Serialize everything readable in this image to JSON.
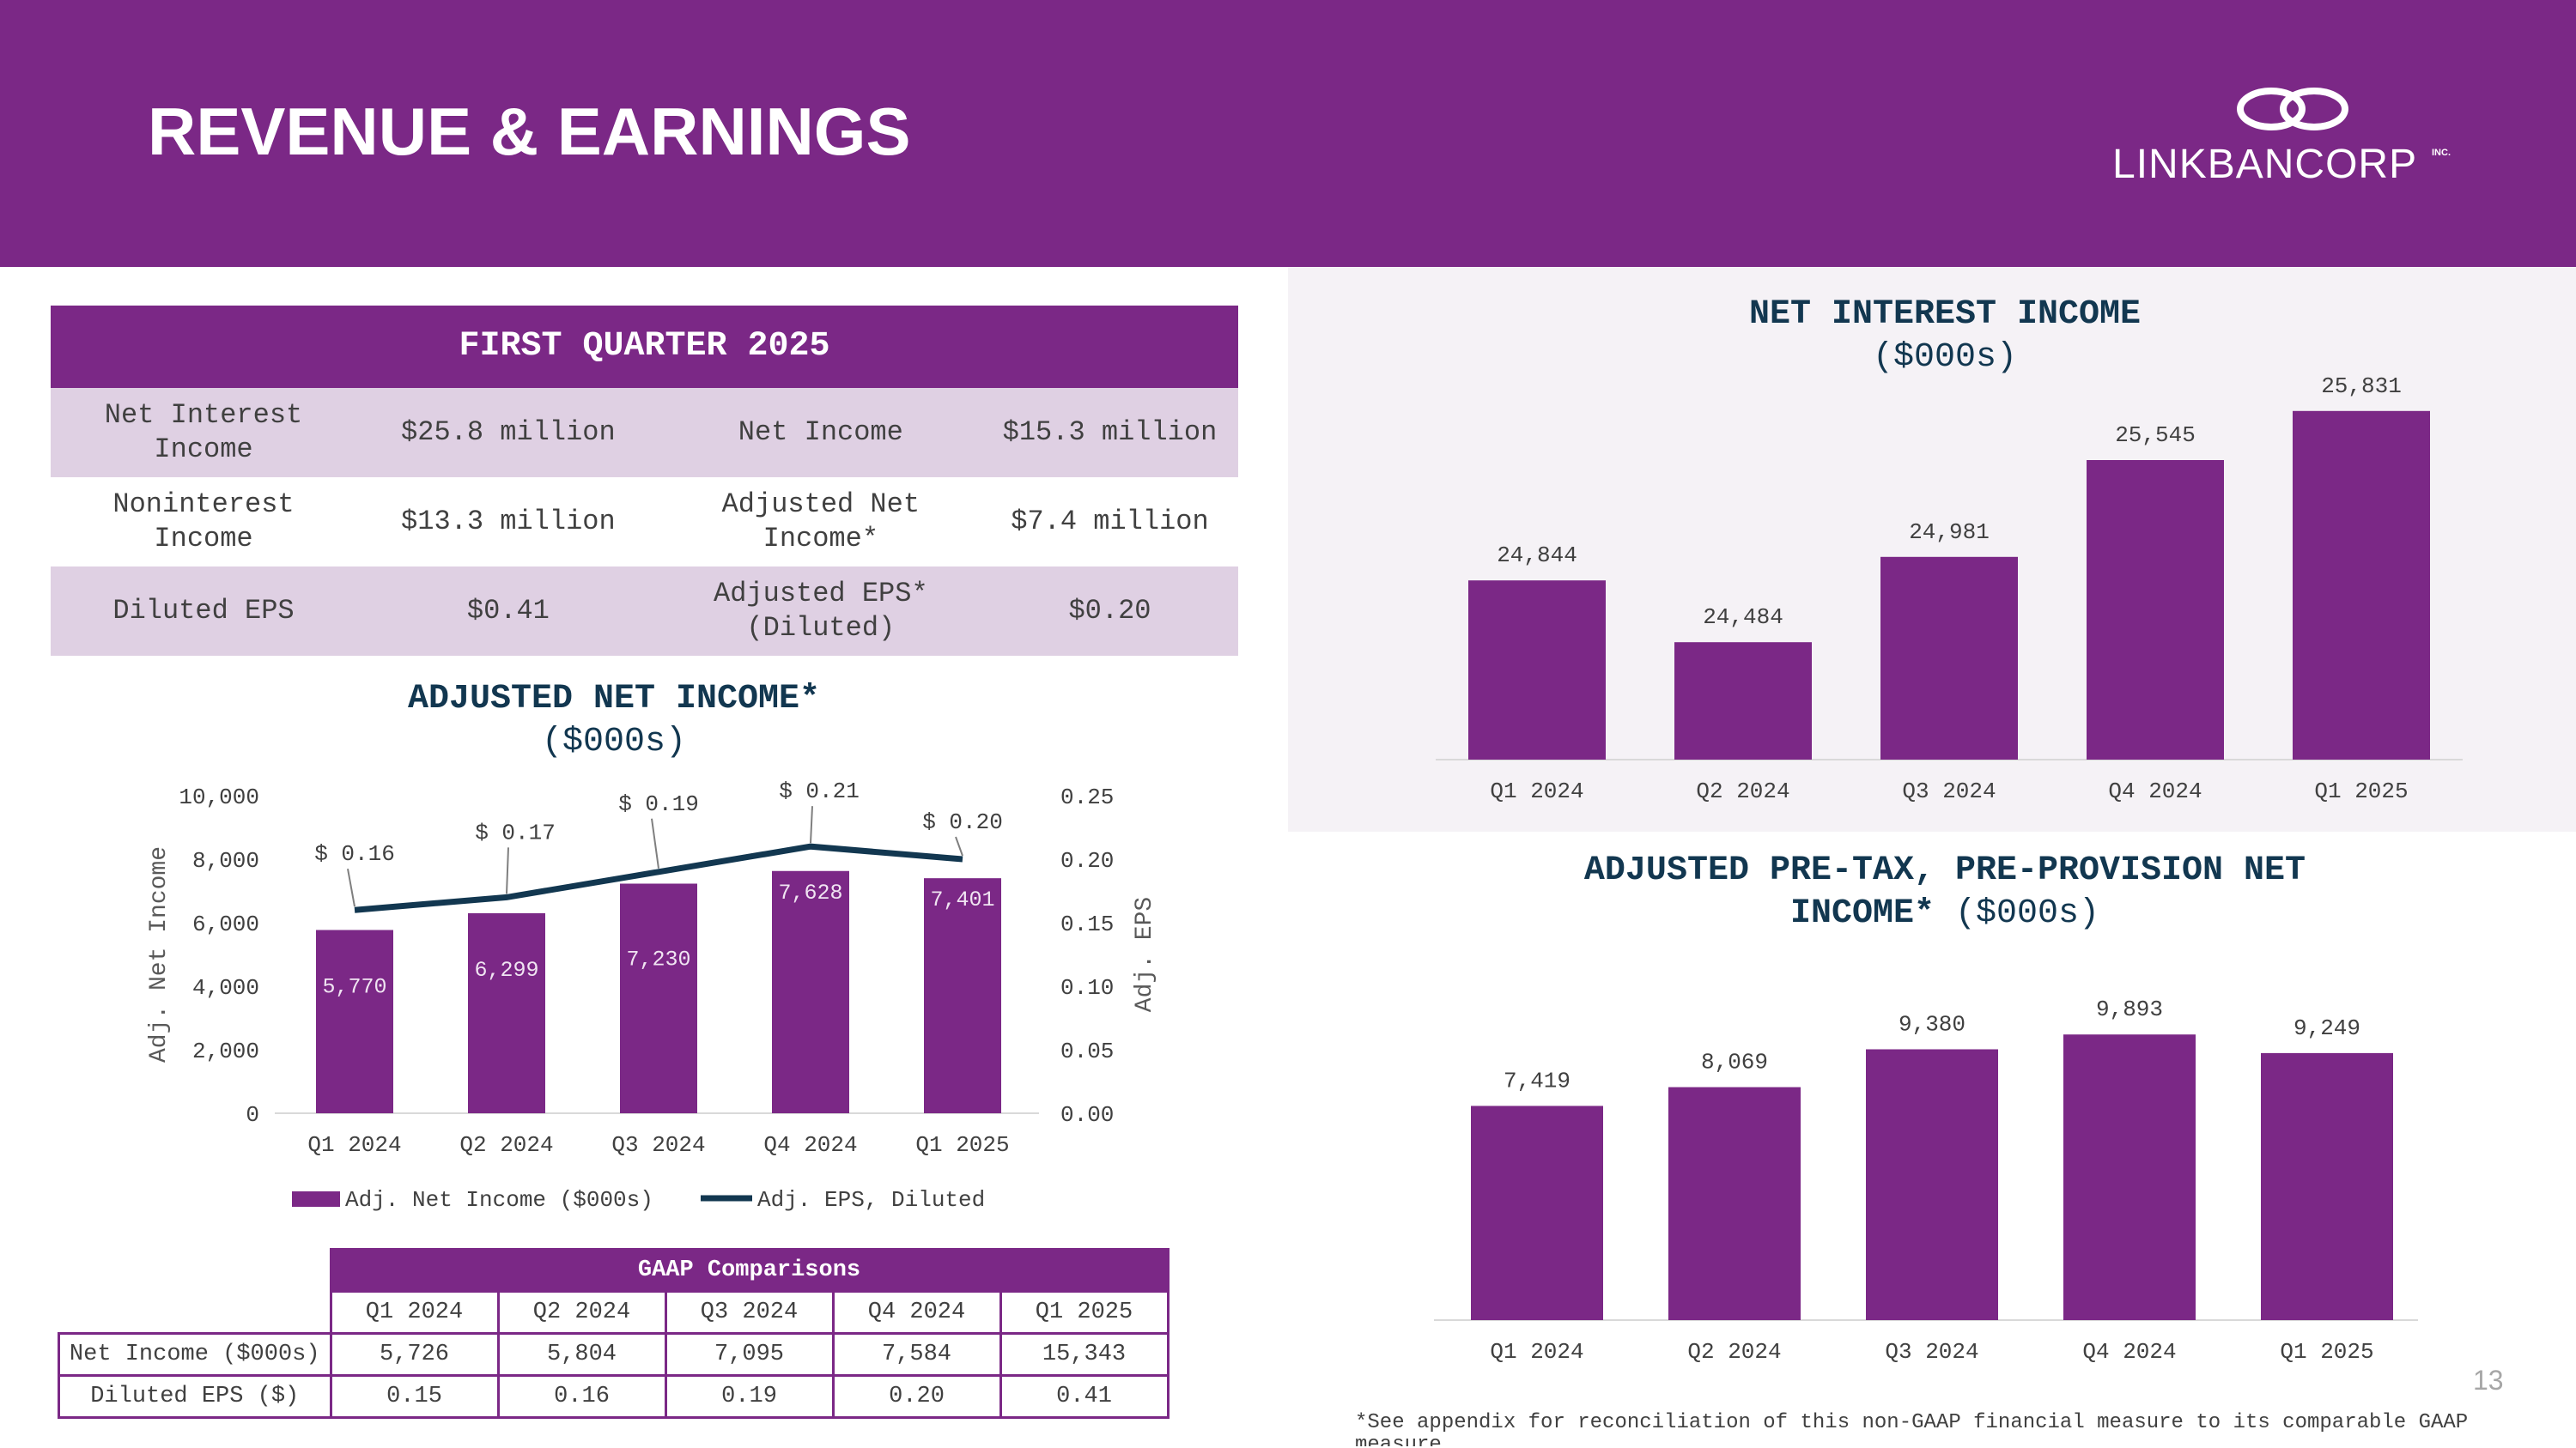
{
  "header": {
    "title": "REVENUE & EARNINGS",
    "logo_text": "LINKBANCORP",
    "logo_suffix": "INC."
  },
  "summary": {
    "heading": "FIRST QUARTER 2025",
    "rows": [
      [
        "Net Interest Income",
        "$25.8 million",
        "Net Income",
        "$15.3 million"
      ],
      [
        "Noninterest Income",
        "$13.3 million",
        "Adjusted Net Income*",
        "$7.4 million"
      ],
      [
        "Diluted EPS",
        "$0.41",
        "Adjusted EPS* (Diluted)",
        "$0.20"
      ]
    ]
  },
  "adj_chart": {
    "title_bold": "ADJUSTED NET INCOME*",
    "title_sub": "($000s)"
  },
  "nii_chart": {
    "title_bold": "NET INTEREST INCOME",
    "title_sub": "($000s)"
  },
  "pptnr_chart": {
    "title_bold_1": "ADJUSTED PRE-TAX, PRE-PROVISION NET",
    "title_bold_2": "INCOME*",
    "title_sub": "($000s)"
  },
  "chart_data": [
    {
      "id": "adjusted_net_income",
      "type": "bar",
      "categories": [
        "Q1 2024",
        "Q2 2024",
        "Q3 2024",
        "Q4 2024",
        "Q1 2025"
      ],
      "series": [
        {
          "name": "Adj. Net Income ($000s)",
          "type": "bar",
          "axis": "left",
          "values": [
            5770,
            6299,
            7230,
            7628,
            7401
          ],
          "labels": [
            "5,770",
            "6,299",
            "7,230",
            "7,628",
            "7,401"
          ]
        },
        {
          "name": "Adj. EPS, Diluted",
          "type": "line",
          "axis": "right",
          "values": [
            0.16,
            0.17,
            0.19,
            0.21,
            0.2
          ],
          "labels": [
            "$ 0.16",
            "$ 0.17",
            "$ 0.19",
            "$ 0.21",
            "$ 0.20"
          ]
        }
      ],
      "ylabel": "Adj. Net Income",
      "y2label": "Adj. EPS",
      "ylim": [
        0,
        10000
      ],
      "y2lim": [
        0,
        0.25
      ],
      "yticks": [
        "0",
        "2,000",
        "4,000",
        "6,000",
        "8,000",
        "10,000"
      ],
      "y2ticks": [
        "0.00",
        "0.05",
        "0.10",
        "0.15",
        "0.20",
        "0.25"
      ],
      "legend": "bottom"
    },
    {
      "id": "net_interest_income",
      "type": "bar",
      "categories": [
        "Q1 2024",
        "Q2 2024",
        "Q3 2024",
        "Q4 2024",
        "Q1 2025"
      ],
      "values": [
        24844,
        24484,
        24981,
        25545,
        25831
      ],
      "labels": [
        "24,844",
        "24,484",
        "24,981",
        "25,545",
        "25,831"
      ],
      "title": "NET INTEREST INCOME ($000s)",
      "ylim": [
        23800,
        26200
      ]
    },
    {
      "id": "adjusted_pptnr",
      "type": "bar",
      "categories": [
        "Q1 2024",
        "Q2 2024",
        "Q3 2024",
        "Q4 2024",
        "Q1 2025"
      ],
      "values": [
        7419,
        8069,
        9380,
        9893,
        9249
      ],
      "labels": [
        "7,419",
        "8,069",
        "9,380",
        "9,893",
        "9,249"
      ],
      "title": "ADJUSTED PRE-TAX, PRE-PROVISION NET INCOME* ($000s)",
      "ylim": [
        0,
        11000
      ]
    }
  ],
  "gaap": {
    "heading": "GAAP Comparisons",
    "columns": [
      "Q1 2024",
      "Q2 2024",
      "Q3 2024",
      "Q4 2024",
      "Q1 2025"
    ],
    "rows": [
      {
        "label": "Net Income ($000s)",
        "values": [
          "5,726",
          "5,804",
          "7,095",
          "7,584",
          "15,343"
        ]
      },
      {
        "label": "Diluted EPS ($)",
        "values": [
          "0.15",
          "0.16",
          "0.19",
          "0.20",
          "0.41"
        ]
      }
    ]
  },
  "footer": {
    "page_number": "13",
    "footnote": "*See appendix for reconciliation of this non-GAAP financial measure to its comparable GAAP measure"
  },
  "colors": {
    "brand_purple": "#7b2886",
    "navy": "#123750",
    "row_shade": "#dfd0e3"
  }
}
